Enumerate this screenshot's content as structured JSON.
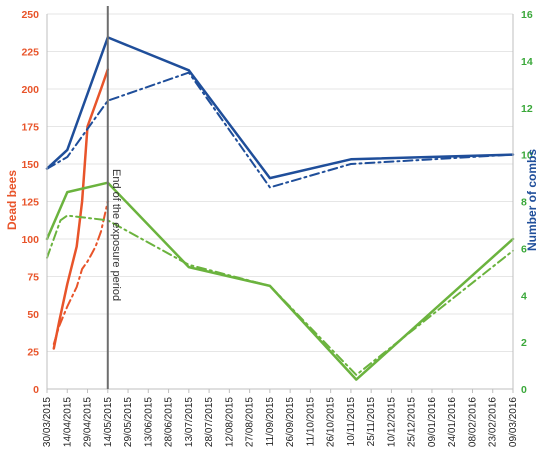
{
  "chart_data": {
    "type": "line",
    "x": [
      "30/03/2015",
      "14/04/2015",
      "29/04/2015",
      "14/05/2015",
      "29/05/2015",
      "13/06/2015",
      "28/06/2015",
      "13/07/2015",
      "28/07/2015",
      "12/08/2015",
      "27/08/2015",
      "11/09/2015",
      "26/09/2015",
      "11/10/2015",
      "26/10/2015",
      "10/11/2015",
      "25/11/2015",
      "10/12/2015",
      "25/12/2015",
      "09/01/2016",
      "24/01/2016",
      "08/02/2016",
      "23/02/2016",
      "09/03/2016"
    ],
    "left_axis": {
      "label": "Dead   bees",
      "ylim": [
        0,
        250
      ],
      "ticks": [
        0,
        25,
        50,
        75,
        100,
        125,
        150,
        175,
        200,
        225,
        250
      ],
      "color": "#e8542a"
    },
    "right_axis": {
      "label": "Number of combs",
      "ylim": [
        0,
        16
      ],
      "ticks": [
        0,
        2,
        4,
        6,
        8,
        10,
        12,
        14,
        16
      ],
      "colors": [
        "#3aa83a",
        "#1f4e9a"
      ]
    },
    "annotation": "End of the exposure period",
    "annotation_date": "14/05/2015",
    "series": [
      {
        "axis": "left",
        "style": "solid",
        "color": "#e8542a",
        "points": [
          [
            "04/04/2015",
            27
          ],
          [
            "08/04/2015",
            45
          ],
          [
            "14/04/2015",
            70
          ],
          [
            "21/04/2015",
            95
          ],
          [
            "25/04/2015",
            125
          ],
          [
            "29/04/2015",
            175
          ],
          [
            "05/05/2015",
            190
          ],
          [
            "09/05/2015",
            200
          ],
          [
            "14/05/2015",
            213
          ]
        ]
      },
      {
        "axis": "left",
        "style": "dashdot",
        "color": "#e8542a",
        "points": [
          [
            "04/04/2015",
            30
          ],
          [
            "08/04/2015",
            42
          ],
          [
            "14/04/2015",
            55
          ],
          [
            "21/04/2015",
            68
          ],
          [
            "25/04/2015",
            80
          ],
          [
            "29/04/2015",
            85
          ],
          [
            "02/05/2015",
            90
          ],
          [
            "05/05/2015",
            95
          ],
          [
            "09/05/2015",
            105
          ],
          [
            "14/05/2015",
            125
          ]
        ]
      },
      {
        "axis": "right",
        "style": "solid",
        "color": "#1f4e9a",
        "points": [
          [
            "30/03/2015",
            9.4
          ],
          [
            "14/04/2015",
            10.2
          ],
          [
            "14/05/2015",
            15
          ],
          [
            "13/07/2015",
            13.6
          ],
          [
            "11/09/2015",
            9
          ],
          [
            "10/11/2015",
            9.8
          ],
          [
            "09/03/2016",
            10
          ]
        ]
      },
      {
        "axis": "right",
        "style": "dashdot",
        "color": "#1f4e9a",
        "points": [
          [
            "30/03/2015",
            9.4
          ],
          [
            "14/04/2015",
            9.9
          ],
          [
            "14/05/2015",
            12.3
          ],
          [
            "13/07/2015",
            13.5
          ],
          [
            "11/09/2015",
            8.6
          ],
          [
            "10/11/2015",
            9.6
          ],
          [
            "09/03/2016",
            10
          ]
        ]
      },
      {
        "axis": "right",
        "style": "solid",
        "color": "#6bb33e",
        "points": [
          [
            "30/03/2015",
            6.4
          ],
          [
            "14/04/2015",
            8.4
          ],
          [
            "14/05/2015",
            8.8
          ],
          [
            "13/07/2015",
            5.2
          ],
          [
            "11/09/2015",
            4.4
          ],
          [
            "14/11/2015",
            0.4
          ],
          [
            "09/03/2016",
            6.4
          ]
        ]
      },
      {
        "axis": "right",
        "style": "dashdot",
        "color": "#6bb33e",
        "points": [
          [
            "30/03/2015",
            5.6
          ],
          [
            "09/04/2015",
            7.2
          ],
          [
            "14/04/2015",
            7.4
          ],
          [
            "14/05/2015",
            7.2
          ],
          [
            "13/07/2015",
            5.3
          ],
          [
            "11/09/2015",
            4.4
          ],
          [
            "14/11/2015",
            0.6
          ],
          [
            "09/03/2016",
            5.9
          ]
        ]
      }
    ]
  }
}
